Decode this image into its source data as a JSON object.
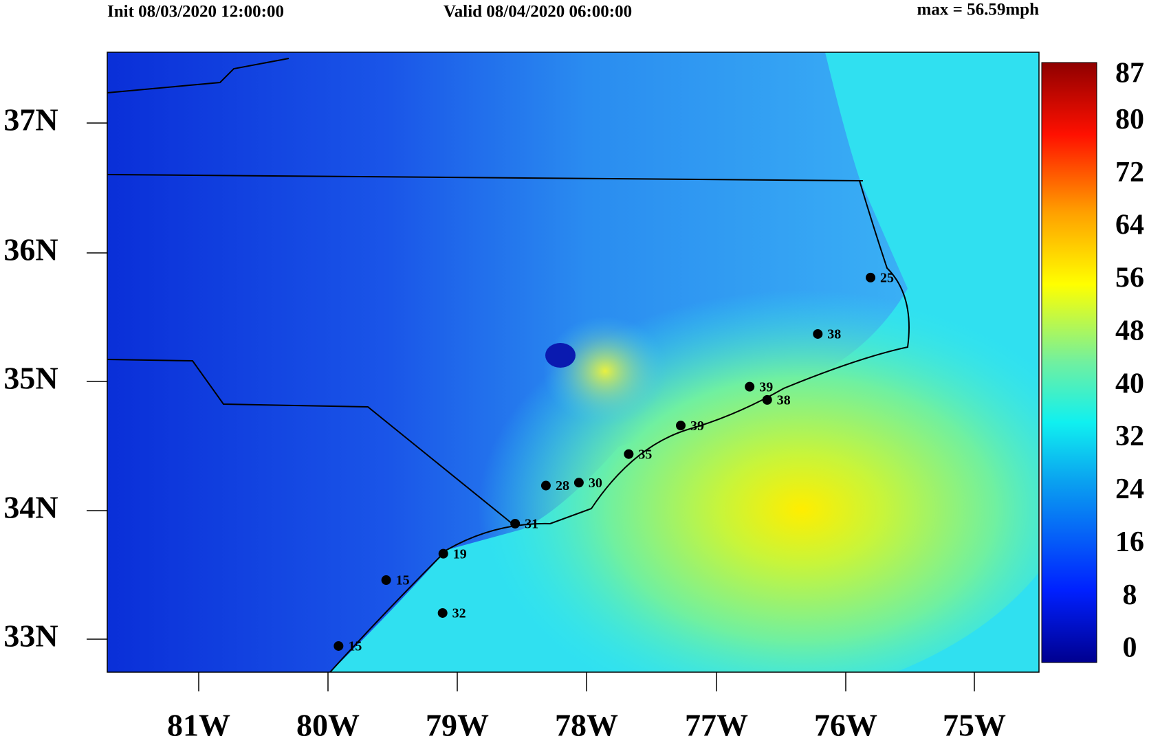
{
  "header": {
    "init": "Init 08/03/2020 12:00:00",
    "valid": "Valid 08/04/2020 06:00:00",
    "max": "max = 56.59mph"
  },
  "axes": {
    "lat_labels": [
      "37N",
      "36N",
      "35N",
      "34N",
      "33N"
    ],
    "lon_labels": [
      "81W",
      "80W",
      "79W",
      "78W",
      "77W",
      "76W",
      "75W"
    ]
  },
  "colorbar": {
    "ticks": [
      87,
      80,
      72,
      64,
      56,
      48,
      40,
      32,
      24,
      16,
      8,
      0
    ]
  },
  "stations": [
    {
      "label": "25"
    },
    {
      "label": "38"
    },
    {
      "label": "39"
    },
    {
      "label": "38"
    },
    {
      "label": "39"
    },
    {
      "label": "35"
    },
    {
      "label": "30"
    },
    {
      "label": "28"
    },
    {
      "label": "31"
    },
    {
      "label": "19"
    },
    {
      "label": "15"
    },
    {
      "label": "32"
    },
    {
      "label": "15"
    }
  ]
}
